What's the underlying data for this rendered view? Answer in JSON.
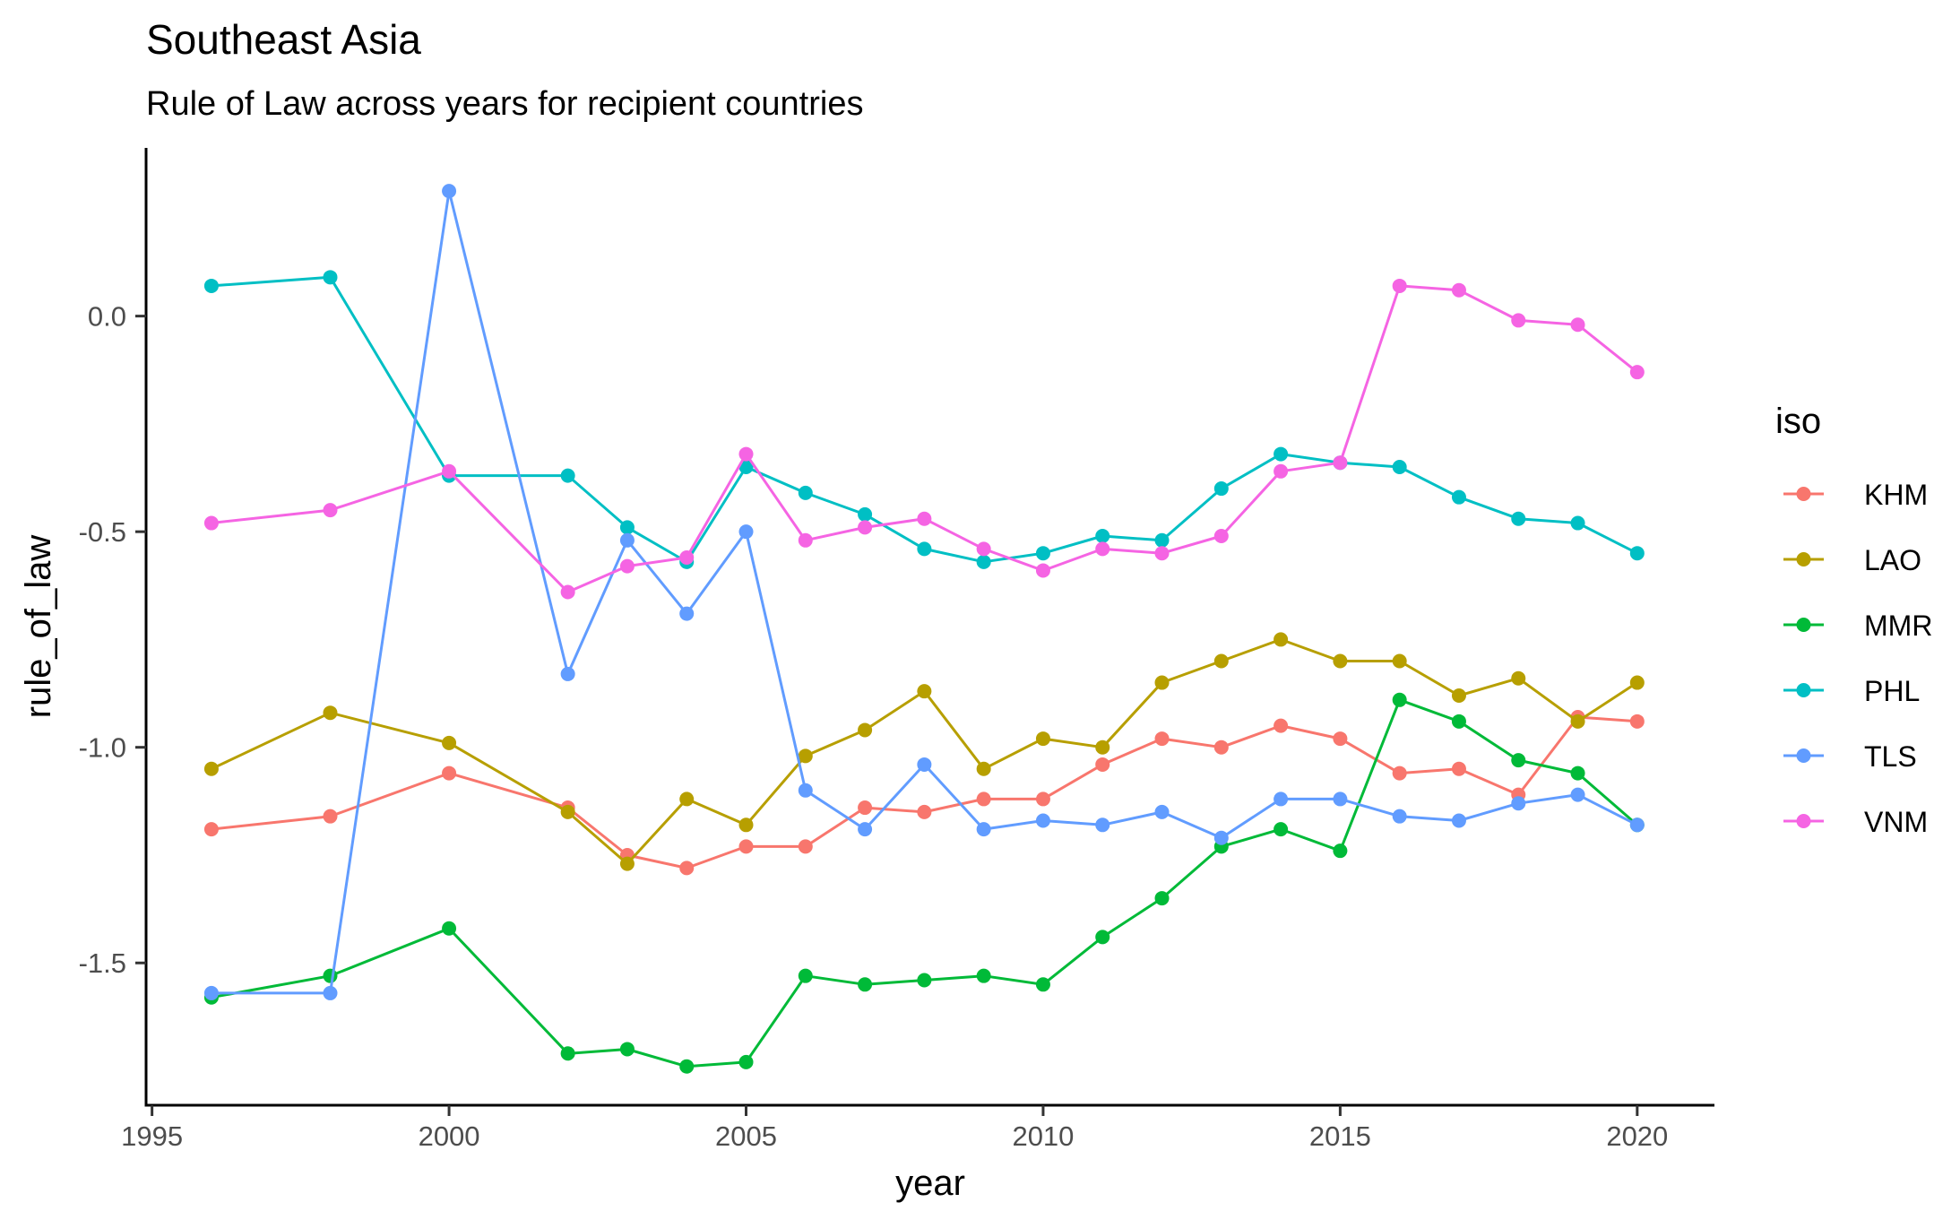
{
  "chart_data": {
    "type": "line",
    "title": "Southeast Asia",
    "subtitle": "Rule of Law across years for recipient countries",
    "xlabel": "year",
    "ylabel": "rule_of_law",
    "xlim": [
      1994.9,
      2021.3
    ],
    "ylim": [
      -1.83,
      0.39
    ],
    "x_ticks": [
      1995,
      2000,
      2005,
      2010,
      2015,
      2020
    ],
    "y_ticks": [
      0.0,
      -0.5,
      -1.0,
      -1.5
    ],
    "x_tick_labels": [
      "1995",
      "2000",
      "2005",
      "2010",
      "2015",
      "2020"
    ],
    "y_tick_labels": [
      "0.0",
      "-0.5",
      "-1.0",
      "-1.5"
    ],
    "grid": false,
    "legend_title": "iso",
    "legend_position": "right",
    "series": [
      {
        "name": "KHM",
        "color": "#F8766D",
        "x": [
          1996,
          1998,
          2000,
          2002,
          2003,
          2004,
          2005,
          2006,
          2007,
          2008,
          2009,
          2010,
          2011,
          2012,
          2013,
          2014,
          2015,
          2016,
          2017,
          2018,
          2019,
          2020
        ],
        "values": [
          -1.19,
          -1.16,
          -1.06,
          -1.14,
          -1.25,
          -1.28,
          -1.23,
          -1.23,
          -1.14,
          -1.15,
          -1.12,
          -1.12,
          -1.04,
          -0.98,
          -1.0,
          -0.95,
          -0.98,
          -1.06,
          -1.05,
          -1.11,
          -0.93,
          -0.94
        ]
      },
      {
        "name": "LAO",
        "color": "#B79F00",
        "x": [
          1996,
          1998,
          2000,
          2002,
          2003,
          2004,
          2005,
          2006,
          2007,
          2008,
          2009,
          2010,
          2011,
          2012,
          2013,
          2014,
          2015,
          2016,
          2017,
          2018,
          2019,
          2020
        ],
        "values": [
          -1.05,
          -0.92,
          -0.99,
          -1.15,
          -1.27,
          -1.12,
          -1.18,
          -1.02,
          -0.96,
          -0.87,
          -1.05,
          -0.98,
          -1.0,
          -0.85,
          -0.8,
          -0.75,
          -0.8,
          -0.8,
          -0.88,
          -0.84,
          -0.94,
          -0.85
        ]
      },
      {
        "name": "MMR",
        "color": "#00BA38",
        "x": [
          1996,
          1998,
          2000,
          2002,
          2003,
          2004,
          2005,
          2006,
          2007,
          2008,
          2009,
          2010,
          2011,
          2012,
          2013,
          2014,
          2015,
          2016,
          2017,
          2018,
          2019,
          2020
        ],
        "values": [
          -1.58,
          -1.53,
          -1.42,
          -1.71,
          -1.7,
          -1.74,
          -1.73,
          -1.53,
          -1.55,
          -1.54,
          -1.53,
          -1.55,
          -1.44,
          -1.35,
          -1.23,
          -1.19,
          -1.24,
          -0.89,
          -0.94,
          -1.03,
          -1.06,
          -1.18
        ]
      },
      {
        "name": "PHL",
        "color": "#00BFC4",
        "x": [
          1996,
          1998,
          2000,
          2002,
          2003,
          2004,
          2005,
          2006,
          2007,
          2008,
          2009,
          2010,
          2011,
          2012,
          2013,
          2014,
          2015,
          2016,
          2017,
          2018,
          2019,
          2020
        ],
        "values": [
          0.07,
          0.09,
          -0.37,
          -0.37,
          -0.49,
          -0.57,
          -0.35,
          -0.41,
          -0.46,
          -0.54,
          -0.57,
          -0.55,
          -0.51,
          -0.52,
          -0.4,
          -0.32,
          -0.34,
          -0.35,
          -0.42,
          -0.47,
          -0.48,
          -0.55
        ]
      },
      {
        "name": "TLS",
        "color": "#619CFF",
        "x": [
          1996,
          1998,
          2000,
          2002,
          2003,
          2004,
          2005,
          2006,
          2007,
          2008,
          2009,
          2010,
          2011,
          2012,
          2013,
          2014,
          2015,
          2016,
          2017,
          2018,
          2019,
          2020
        ],
        "values": [
          -1.57,
          -1.57,
          0.29,
          -0.83,
          -0.52,
          -0.69,
          -0.5,
          -1.1,
          -1.19,
          -1.04,
          -1.19,
          -1.17,
          -1.18,
          -1.15,
          -1.21,
          -1.12,
          -1.12,
          -1.16,
          -1.17,
          -1.13,
          -1.11,
          -1.18
        ]
      },
      {
        "name": "VNM",
        "color": "#F564E3",
        "x": [
          1996,
          1998,
          2000,
          2002,
          2003,
          2004,
          2005,
          2006,
          2007,
          2008,
          2009,
          2010,
          2011,
          2012,
          2013,
          2014,
          2015,
          2016,
          2017,
          2018,
          2019,
          2020
        ],
        "values": [
          -0.48,
          -0.45,
          -0.36,
          -0.64,
          -0.58,
          -0.56,
          -0.32,
          -0.52,
          -0.49,
          -0.47,
          -0.54,
          -0.59,
          -0.54,
          -0.55,
          -0.51,
          -0.36,
          -0.34,
          0.07,
          0.06,
          -0.01,
          -0.02,
          -0.13
        ]
      }
    ]
  }
}
